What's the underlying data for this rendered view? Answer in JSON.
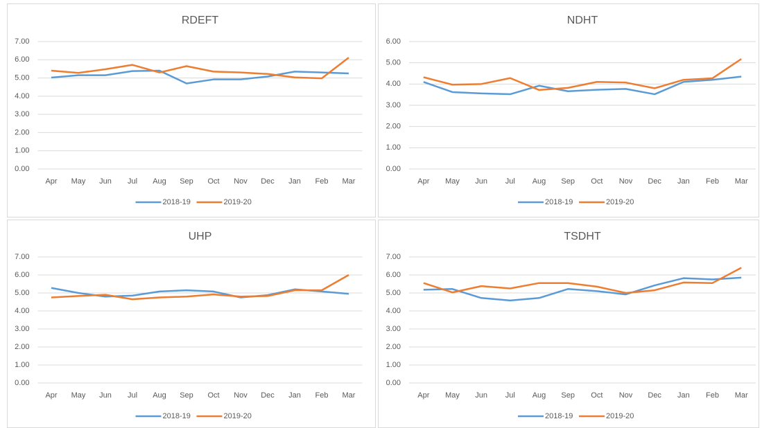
{
  "chart_data": [
    {
      "type": "line",
      "title": "RDEFT",
      "categories": [
        "Apr",
        "May",
        "Jun",
        "Jul",
        "Aug",
        "Sep",
        "Oct",
        "Nov",
        "Dec",
        "Jan",
        "Feb",
        "Mar"
      ],
      "series": [
        {
          "name": "2018-19",
          "color": "#5b9bd5",
          "values": [
            5.02,
            5.15,
            5.15,
            5.38,
            5.4,
            4.7,
            4.92,
            4.92,
            5.08,
            5.35,
            5.3,
            5.25
          ]
        },
        {
          "name": "2019-20",
          "color": "#ed7d31",
          "values": [
            5.4,
            5.28,
            5.48,
            5.72,
            5.3,
            5.65,
            5.35,
            5.3,
            5.22,
            5.03,
            4.98,
            6.12
          ]
        }
      ],
      "ylim": [
        0,
        7
      ],
      "yticks": [
        {
          "value": 0,
          "label": "0.00"
        },
        {
          "value": 1,
          "label": "1.00"
        },
        {
          "value": 2,
          "label": "2.00"
        },
        {
          "value": 3,
          "label": "3.00"
        },
        {
          "value": 4,
          "label": "4.00"
        },
        {
          "value": 5,
          "label": "5.00"
        },
        {
          "value": 6,
          "label": "6.00"
        },
        {
          "value": 7,
          "label": "7.00"
        }
      ],
      "grid": true
    },
    {
      "type": "line",
      "title": "NDHT",
      "categories": [
        "Apr",
        "May",
        "Jun",
        "Jul",
        "Aug",
        "Sep",
        "Oct",
        "Nov",
        "Dec",
        "Jan",
        "Feb",
        "Mar"
      ],
      "series": [
        {
          "name": "2018-19",
          "color": "#5b9bd5",
          "values": [
            4.1,
            3.62,
            3.56,
            3.52,
            3.92,
            3.66,
            3.73,
            3.77,
            3.52,
            4.1,
            4.2,
            4.35
          ]
        },
        {
          "name": "2019-20",
          "color": "#ed7d31",
          "values": [
            4.32,
            3.97,
            4.0,
            4.28,
            3.72,
            3.82,
            4.1,
            4.07,
            3.8,
            4.2,
            4.27,
            5.18
          ]
        }
      ],
      "ylim": [
        0,
        6
      ],
      "yticks": [
        {
          "value": 0,
          "label": "0.00"
        },
        {
          "value": 1,
          "label": "1.00"
        },
        {
          "value": 2,
          "label": "2.00"
        },
        {
          "value": 3,
          "label": "3.00"
        },
        {
          "value": 4,
          "label": "4.00"
        },
        {
          "value": 5,
          "label": "5.00"
        },
        {
          "value": 6,
          "label": "6.00"
        }
      ],
      "grid": true
    },
    {
      "type": "line",
      "title": "UHP",
      "categories": [
        "Apr",
        "May",
        "Jun",
        "Jul",
        "Aug",
        "Sep",
        "Oct",
        "Nov",
        "Dec",
        "Jan",
        "Feb",
        "Mar"
      ],
      "series": [
        {
          "name": "2018-19",
          "color": "#5b9bd5",
          "values": [
            5.28,
            5.0,
            4.8,
            4.85,
            5.08,
            5.15,
            5.08,
            4.75,
            4.88,
            5.2,
            5.08,
            4.95
          ]
        },
        {
          "name": "2019-20",
          "color": "#ed7d31",
          "values": [
            4.75,
            4.83,
            4.9,
            4.65,
            4.75,
            4.8,
            4.92,
            4.8,
            4.83,
            5.15,
            5.15,
            6.0
          ]
        }
      ],
      "ylim": [
        0,
        7
      ],
      "yticks": [
        {
          "value": 0,
          "label": "0.00"
        },
        {
          "value": 1,
          "label": "1.00"
        },
        {
          "value": 2,
          "label": "2.00"
        },
        {
          "value": 3,
          "label": "3.00"
        },
        {
          "value": 4,
          "label": "4.00"
        },
        {
          "value": 5,
          "label": "5.00"
        },
        {
          "value": 6,
          "label": "6.00"
        },
        {
          "value": 7,
          "label": "7.00"
        }
      ],
      "grid": true
    },
    {
      "type": "line",
      "title": "TSDHT",
      "categories": [
        "Apr",
        "May",
        "Jun",
        "Jul",
        "Aug",
        "Sep",
        "Oct",
        "Nov",
        "Dec",
        "Jan",
        "Feb",
        "Mar"
      ],
      "series": [
        {
          "name": "2018-19",
          "color": "#5b9bd5",
          "values": [
            5.18,
            5.22,
            4.72,
            4.58,
            4.72,
            5.22,
            5.1,
            4.92,
            5.42,
            5.82,
            5.75,
            5.85
          ]
        },
        {
          "name": "2019-20",
          "color": "#ed7d31",
          "values": [
            5.55,
            5.03,
            5.38,
            5.25,
            5.55,
            5.55,
            5.35,
            5.0,
            5.15,
            5.58,
            5.55,
            6.4
          ]
        }
      ],
      "ylim": [
        0,
        7
      ],
      "yticks": [
        {
          "value": 0,
          "label": "0.00"
        },
        {
          "value": 1,
          "label": "1.00"
        },
        {
          "value": 2,
          "label": "2.00"
        },
        {
          "value": 3,
          "label": "3.00"
        },
        {
          "value": 4,
          "label": "4.00"
        },
        {
          "value": 5,
          "label": "5.00"
        },
        {
          "value": 6,
          "label": "6.00"
        },
        {
          "value": 7,
          "label": "7.00"
        }
      ],
      "grid": true
    }
  ]
}
